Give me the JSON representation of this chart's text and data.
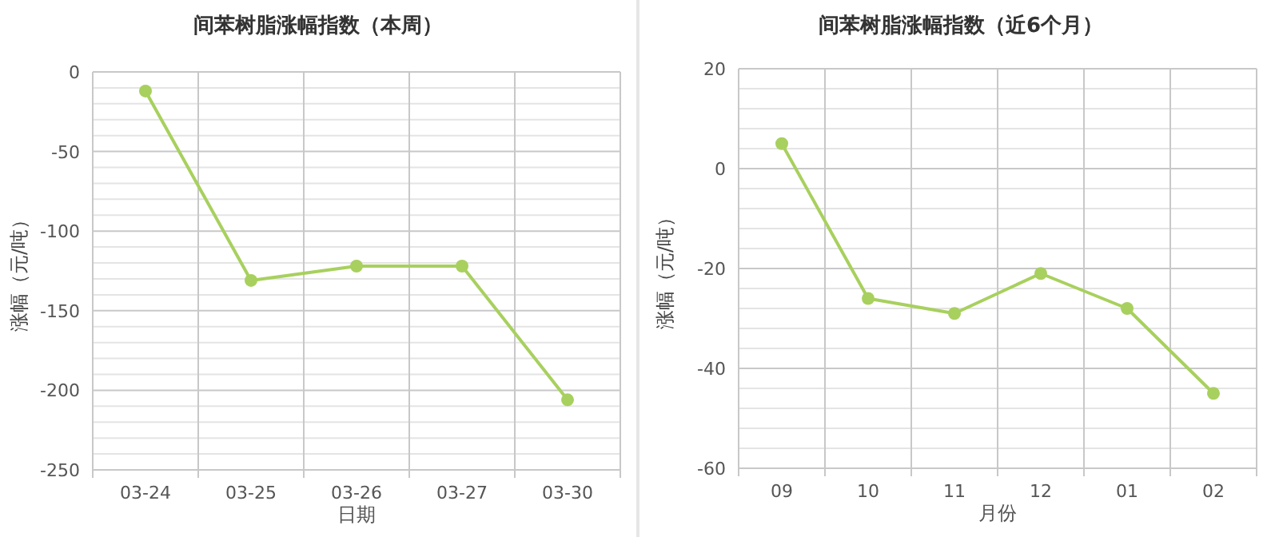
{
  "chart_data": [
    {
      "type": "line",
      "title": "间苯树脂涨幅指数（本周）",
      "xlabel": "日期",
      "ylabel": "涨幅（元/吨）",
      "categories": [
        "03-24",
        "03-25",
        "03-26",
        "03-27",
        "03-30"
      ],
      "series": [
        {
          "color": "#a8d05e",
          "values": [
            -12,
            -131,
            -122,
            -122,
            -206
          ]
        }
      ],
      "ylim": [
        -250,
        0
      ],
      "yticks": [
        -250,
        -200,
        -150,
        -100,
        -50,
        0
      ],
      "grid": true,
      "marker": "circle",
      "line_style": "solid"
    },
    {
      "type": "line",
      "title": "间苯树脂涨幅指数（近6个月）",
      "xlabel": "月份",
      "ylabel": "涨幅（元/吨）",
      "categories": [
        "09",
        "10",
        "11",
        "12",
        "01",
        "02"
      ],
      "series": [
        {
          "color": "#a8d05e",
          "values": [
            5,
            -26,
            -29,
            -21,
            -28,
            -45
          ]
        }
      ],
      "ylim": [
        -60,
        20
      ],
      "yticks": [
        -60,
        -40,
        -20,
        0,
        20
      ],
      "grid": true,
      "marker": "circle",
      "line_style": "solid"
    }
  ]
}
